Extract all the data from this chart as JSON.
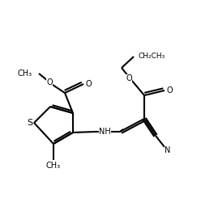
{
  "bg_color": "#ffffff",
  "bond_color": "#000000",
  "lw": 1.5,
  "fs": 7,
  "figsize": [
    2.49,
    2.5
  ],
  "dpi": 100
}
